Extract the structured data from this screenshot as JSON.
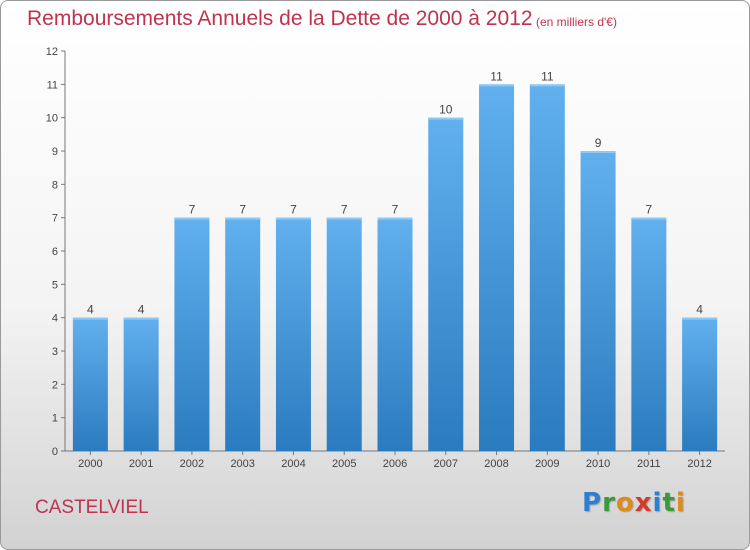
{
  "header": {
    "title": "Remboursements Annuels de la Dette de 2000 à 2012",
    "unit": "(en milliers d'€)"
  },
  "footer": {
    "town": "CASTELVIEL",
    "logo": {
      "text": "Proxiti",
      "letter_colors": [
        "#2f7fd0",
        "#3a9a3a",
        "#e08a1a",
        "#d23a2a",
        "#2f7fd0",
        "#3a9a3a",
        "#e08a1a"
      ]
    }
  },
  "chart_data": {
    "type": "bar",
    "categories": [
      "2000",
      "2001",
      "2002",
      "2003",
      "2004",
      "2005",
      "2006",
      "2007",
      "2008",
      "2009",
      "2010",
      "2011",
      "2012"
    ],
    "values": [
      4,
      4,
      7,
      7,
      7,
      7,
      7,
      10,
      11,
      11,
      9,
      7,
      4
    ],
    "data_labels": [
      "4",
      "4",
      "7",
      "7",
      "7",
      "7",
      "7",
      "10",
      "11",
      "11",
      "9",
      "7",
      "4"
    ],
    "title": "Remboursements Annuels de la Dette de 2000 à 2012",
    "ylim": [
      0,
      12
    ],
    "yticks": [
      0,
      1,
      2,
      3,
      4,
      5,
      6,
      7,
      8,
      9,
      10,
      11,
      12
    ],
    "grid": false,
    "colors": {
      "bar_top": "#62b0ee",
      "bar_bottom": "#2a7bbf",
      "axis": "#777777",
      "text": "#444444"
    }
  }
}
